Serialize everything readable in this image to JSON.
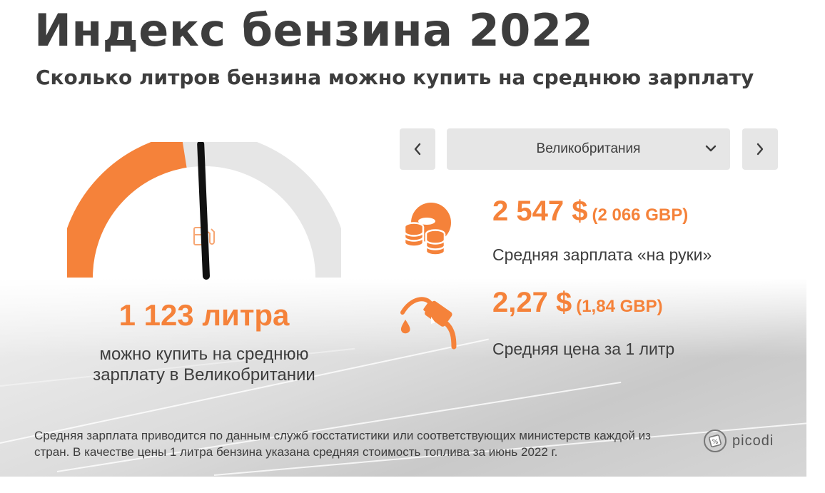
{
  "header": {
    "title": "Индекс бензина 2022",
    "subtitle": "Сколько литров бензина можно купить на среднюю зарплату"
  },
  "gauge": {
    "fill_fraction": 0.45,
    "liters_text": "1 123 литра",
    "description": "можно купить на среднюю зарплату в Великобритании",
    "fill_color": "#f5823a",
    "track_color": "#e6e6e6",
    "icon": "fuel-pump-icon"
  },
  "selector": {
    "prev_icon": "chevron-left-icon",
    "next_icon": "chevron-right-icon",
    "selected_country": "Великобритания"
  },
  "stats": {
    "salary": {
      "value": "2 547 $",
      "local_value": "(2 066 GBP)",
      "label": "Средняя зарплата «на руки»",
      "icon": "coins-icon"
    },
    "price": {
      "value": "2,27 $",
      "local_value": "(1,84 GBP)",
      "label": "Средняя цена за 1 литр",
      "icon": "fuel-nozzle-icon"
    }
  },
  "footnote": "Средняя зарплата приводится по данным служб госстатистики или соответствующих министерств каждой из стран. В качестве цены 1 литра бензина указана средняя стоимость топлива за июнь 2022 г.",
  "brand": {
    "name": "picodi",
    "icon": "picodi-logo-icon"
  },
  "colors": {
    "accent": "#f5823a",
    "text": "#3d3d3d",
    "control_bg": "#e6e6e6"
  }
}
